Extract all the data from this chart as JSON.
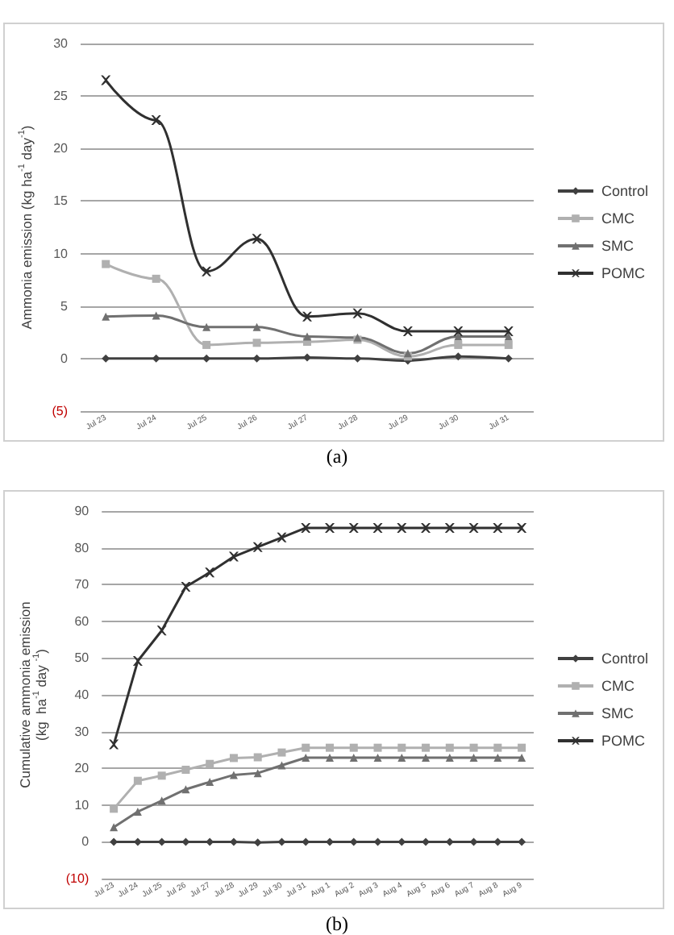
{
  "chart_data": [
    {
      "type": "line",
      "ylabel": "Ammonia emission (kg ha$^{-1}$ day$^{-1}$)",
      "annotations": [
        "(a)"
      ],
      "categories": [
        "Jul 23",
        "Jul 24",
        "Jul 25",
        "Jul 26",
        "Jul 27",
        "Jul 28",
        "Jul 29",
        "Jul 30",
        "Jul 31"
      ],
      "ylim": [
        -5,
        30
      ],
      "yticks": [
        {
          "value": -5,
          "label": "(5)"
        },
        0,
        5,
        10,
        15,
        20,
        25,
        30
      ],
      "grid": "y",
      "legend": "right",
      "series": [
        {
          "name": "Control",
          "color": "#404040",
          "marker": "diamond",
          "values": [
            0,
            0,
            0,
            0,
            0.1,
            0,
            -0.2,
            0.2,
            0
          ]
        },
        {
          "name": "CMC",
          "color": "#b0b0b0",
          "marker": "square",
          "values": [
            9,
            7.6,
            1.3,
            1.5,
            1.6,
            1.8,
            0.2,
            1.3,
            1.3
          ]
        },
        {
          "name": "SMC",
          "color": "#707070",
          "marker": "triangle",
          "values": [
            4,
            4.1,
            3,
            3,
            2.1,
            2,
            0.5,
            2.1,
            2.1
          ]
        },
        {
          "name": "POMC",
          "color": "#303030",
          "marker": "cross",
          "values": [
            26.5,
            22.7,
            8.3,
            11.4,
            4,
            4.3,
            2.6,
            2.6,
            2.6
          ]
        }
      ]
    },
    {
      "type": "line",
      "ylabel": "Cumulative ammonia emission\n(kg  ha$^{-1}$ day $^{-1}$)",
      "annotations": [
        "(b)"
      ],
      "categories": [
        "Jul 23",
        "Jul 24",
        "Jul 25",
        "Jul 26",
        "Jul 27",
        "Jul 28",
        "Jul 29",
        "Jul 30",
        "Jul 31",
        "Aug 1",
        "Aug 2",
        "Aug 3",
        "Aug 4",
        "Aug 5",
        "Aug 6",
        "Aug 7",
        "Aug 8",
        "Aug 9"
      ],
      "ylim": [
        -10,
        90
      ],
      "yticks": [
        {
          "value": -10,
          "label": "(10)"
        },
        0,
        10,
        20,
        30,
        40,
        50,
        60,
        70,
        80,
        90
      ],
      "grid": "y",
      "legend": "right",
      "series": [
        {
          "name": "Control",
          "color": "#404040",
          "marker": "diamond",
          "values": [
            0,
            0,
            0,
            0,
            0,
            0,
            -0.2,
            0,
            0,
            0,
            0,
            0,
            0,
            0,
            0,
            0,
            0,
            0
          ]
        },
        {
          "name": "CMC",
          "color": "#b0b0b0",
          "marker": "square",
          "values": [
            9,
            16.6,
            18,
            19.6,
            21.2,
            22.8,
            23,
            24.3,
            25.6,
            25.6,
            25.6,
            25.6,
            25.6,
            25.6,
            25.6,
            25.6,
            25.6,
            25.6
          ]
        },
        {
          "name": "SMC",
          "color": "#707070",
          "marker": "triangle",
          "values": [
            4,
            8.2,
            11.2,
            14.3,
            16.3,
            18.2,
            18.7,
            20.8,
            22.9,
            22.9,
            22.9,
            22.9,
            22.9,
            22.9,
            22.9,
            22.9,
            22.9,
            22.9
          ]
        },
        {
          "name": "POMC",
          "color": "#303030",
          "marker": "cross",
          "values": [
            26.5,
            49.2,
            57.5,
            69.4,
            73.3,
            77.6,
            80.2,
            82.8,
            85.4,
            85.4,
            85.4,
            85.4,
            85.4,
            85.4,
            85.4,
            85.4,
            85.4,
            85.4
          ]
        }
      ]
    }
  ]
}
